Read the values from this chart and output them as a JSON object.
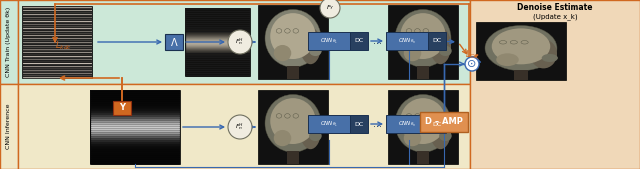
{
  "fig_width": 6.4,
  "fig_height": 1.69,
  "dpi": 100,
  "bg_train": "#cce8d8",
  "bg_infer": "#f0e8c8",
  "bg_denoise": "#f0d8b8",
  "orange": "#d06820",
  "blue": "#3868b0",
  "blue_box": "#4870a8",
  "blue_dark": "#284060",
  "circle_fill": "#f0ece0",
  "train_label": "CNN Train (Update θk)",
  "infer_label": "CNN Inference",
  "denoise_title": "Denoise Estimate",
  "denoise_subtitle": "(Update x_k)"
}
